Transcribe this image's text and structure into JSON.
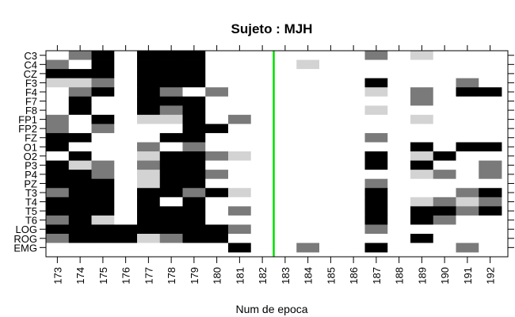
{
  "chart_data": {
    "type": "heatmap",
    "title": "Sujeto : MJH",
    "xlabel": "Num de epoca",
    "ylabel": "",
    "x": [
      173,
      174,
      175,
      176,
      177,
      178,
      179,
      180,
      181,
      182,
      183,
      184,
      185,
      186,
      187,
      188,
      189,
      190,
      191,
      192
    ],
    "y": [
      "C3",
      "C4",
      "CZ",
      "F3",
      "F4",
      "F7",
      "F8",
      "FP1",
      "FP2",
      "FZ",
      "O1",
      "O2",
      "P3",
      "P4",
      "PZ",
      "T3",
      "T4",
      "T5",
      "T6",
      "LOG",
      "ROG",
      "EMG"
    ],
    "levels": {
      "0": "#ffffff",
      "1": "#d3d3d3",
      "2": "#7a7a7a",
      "3": "#000000"
    },
    "z": [
      [
        0,
        2,
        3,
        0,
        3,
        3,
        3,
        0,
        0,
        0,
        0,
        0,
        0,
        0,
        2,
        0,
        1,
        0,
        0,
        0
      ],
      [
        2,
        0,
        3,
        0,
        3,
        3,
        3,
        0,
        0,
        0,
        0,
        1,
        0,
        0,
        0,
        0,
        0,
        0,
        0,
        0
      ],
      [
        3,
        3,
        3,
        0,
        3,
        3,
        3,
        0,
        0,
        0,
        0,
        0,
        0,
        0,
        0,
        0,
        0,
        0,
        0,
        0
      ],
      [
        1,
        1,
        2,
        0,
        3,
        3,
        3,
        0,
        0,
        0,
        0,
        0,
        0,
        0,
        3,
        0,
        0,
        0,
        2,
        0
      ],
      [
        0,
        2,
        3,
        0,
        3,
        2,
        0,
        2,
        0,
        0,
        0,
        0,
        0,
        0,
        1,
        0,
        2,
        0,
        3,
        3
      ],
      [
        0,
        3,
        0,
        0,
        3,
        3,
        3,
        0,
        0,
        0,
        0,
        0,
        0,
        0,
        0,
        0,
        2,
        0,
        0,
        0
      ],
      [
        0,
        3,
        0,
        0,
        3,
        2,
        3,
        0,
        0,
        0,
        0,
        0,
        0,
        0,
        1,
        0,
        0,
        0,
        0,
        0
      ],
      [
        2,
        0,
        3,
        0,
        1,
        1,
        3,
        0,
        2,
        0,
        0,
        0,
        0,
        0,
        0,
        0,
        1,
        0,
        0,
        0
      ],
      [
        2,
        0,
        2,
        0,
        0,
        0,
        3,
        3,
        0,
        0,
        0,
        0,
        0,
        0,
        0,
        0,
        0,
        0,
        0,
        0
      ],
      [
        3,
        3,
        0,
        0,
        0,
        3,
        3,
        0,
        0,
        0,
        0,
        0,
        0,
        0,
        2,
        0,
        0,
        0,
        0,
        0
      ],
      [
        3,
        0,
        0,
        0,
        2,
        0,
        2,
        0,
        0,
        0,
        0,
        0,
        0,
        0,
        0,
        0,
        3,
        0,
        3,
        3
      ],
      [
        0,
        3,
        0,
        0,
        1,
        3,
        3,
        2,
        1,
        0,
        0,
        0,
        0,
        0,
        3,
        0,
        1,
        3,
        0,
        0
      ],
      [
        3,
        1,
        2,
        0,
        2,
        3,
        3,
        0,
        0,
        0,
        0,
        0,
        0,
        0,
        3,
        0,
        3,
        0,
        0,
        2
      ],
      [
        3,
        3,
        2,
        0,
        1,
        3,
        3,
        2,
        0,
        0,
        0,
        0,
        0,
        0,
        0,
        0,
        1,
        2,
        0,
        2
      ],
      [
        3,
        3,
        3,
        0,
        1,
        3,
        3,
        0,
        0,
        0,
        0,
        0,
        0,
        0,
        2,
        0,
        0,
        0,
        0,
        0
      ],
      [
        2,
        3,
        3,
        0,
        3,
        3,
        2,
        3,
        1,
        0,
        0,
        0,
        0,
        0,
        3,
        0,
        0,
        0,
        2,
        3
      ],
      [
        3,
        3,
        3,
        0,
        3,
        0,
        3,
        0,
        0,
        0,
        0,
        0,
        0,
        0,
        3,
        0,
        1,
        2,
        1,
        2
      ],
      [
        3,
        3,
        3,
        0,
        3,
        3,
        3,
        0,
        2,
        0,
        0,
        0,
        0,
        0,
        3,
        0,
        3,
        3,
        2,
        3
      ],
      [
        2,
        3,
        1,
        0,
        3,
        3,
        3,
        0,
        0,
        0,
        0,
        0,
        0,
        0,
        3,
        0,
        3,
        2,
        0,
        0
      ],
      [
        3,
        3,
        3,
        3,
        3,
        3,
        3,
        3,
        2,
        0,
        0,
        0,
        0,
        0,
        2,
        0,
        0,
        0,
        0,
        0
      ],
      [
        2,
        3,
        3,
        3,
        1,
        2,
        3,
        3,
        0,
        0,
        0,
        0,
        0,
        0,
        0,
        0,
        3,
        0,
        0,
        0
      ],
      [
        0,
        0,
        0,
        0,
        0,
        0,
        0,
        0,
        3,
        0,
        0,
        2,
        0,
        0,
        3,
        0,
        0,
        0,
        2,
        0
      ]
    ],
    "markers": [
      {
        "x": 182.5,
        "color": "#00dd00"
      }
    ],
    "grid": false,
    "legend": "none"
  }
}
